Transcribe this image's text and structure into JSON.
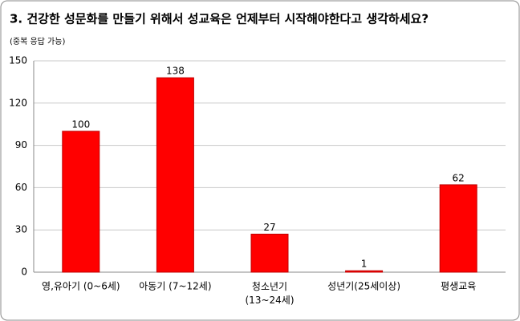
{
  "chart_data": {
    "type": "bar",
    "title": "3. 건강한 성문화를 만들기 위해서 성교육은 언제부터 시작해야한다고 생각하세요?",
    "subtitle": "(중복 응답 가능)",
    "categories": [
      "영,유아기 (0~6세)",
      "아동기 (7~12세)",
      "청소년기\n(13~24세)",
      "성년기(25세이상)",
      "평생교육"
    ],
    "values": [
      100,
      138,
      27,
      1,
      62
    ],
    "color": "#ff0000",
    "ylim": [
      0,
      150
    ],
    "yticks": [
      0,
      30,
      60,
      90,
      120,
      150
    ],
    "grid": true
  }
}
